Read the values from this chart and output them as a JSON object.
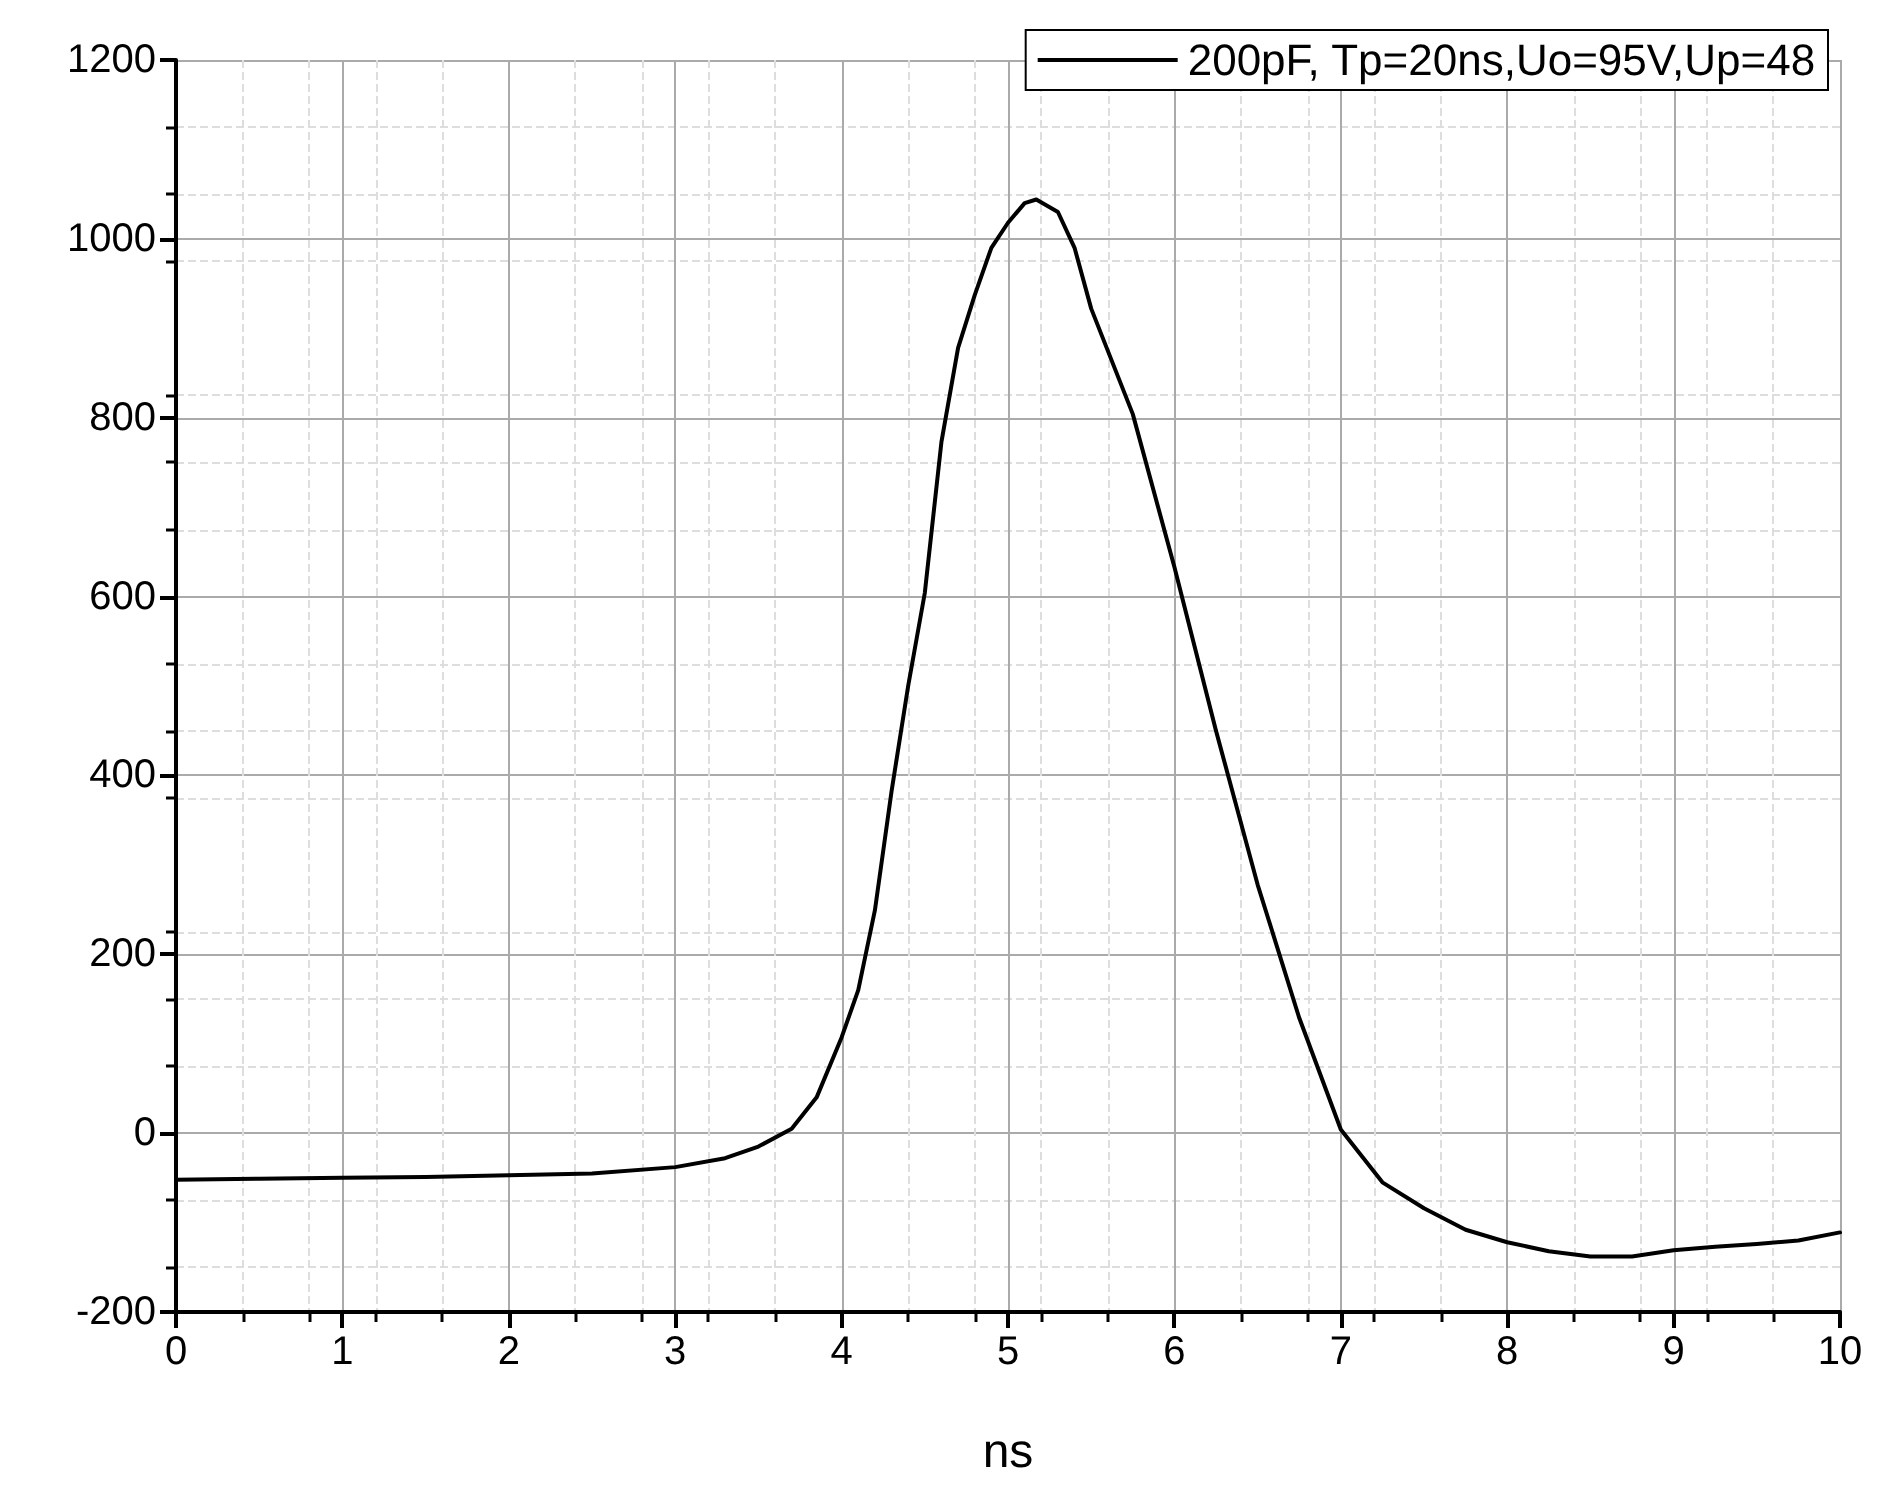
{
  "chart_data": {
    "type": "line",
    "xlabel": "ns",
    "x": [
      0,
      0.5,
      1,
      1.5,
      2,
      2.5,
      3,
      3.3,
      3.5,
      3.7,
      3.85,
      4,
      4.1,
      4.2,
      4.3,
      4.4,
      4.5,
      4.6,
      4.7,
      4.8,
      4.9,
      5,
      5.1,
      5.17,
      5.3,
      5.4,
      5.5,
      5.75,
      6,
      6.25,
      6.5,
      6.75,
      7,
      7.25,
      7.5,
      7.75,
      8,
      8.25,
      8.5,
      8.75,
      9,
      9.25,
      9.5,
      9.75,
      10
    ],
    "series": [
      {
        "name": "200pF, Tp=20ns,Uo=95V,Up=48",
        "color": "#000000",
        "values": [
          -52,
          -51,
          -50,
          -49,
          -47,
          -45,
          -38,
          -28,
          -15,
          5,
          40,
          107,
          160,
          249,
          382,
          500,
          604,
          773,
          878,
          937,
          990,
          1018,
          1040,
          1044,
          1030,
          990,
          922,
          804,
          633,
          450,
          278,
          129,
          4,
          -55,
          -84,
          -108,
          -122,
          -132,
          -138,
          -138,
          -131,
          -127,
          -124,
          -120,
          -111
        ]
      }
    ],
    "xlim": [
      0,
      10
    ],
    "xticks": [
      0,
      1,
      2,
      3,
      4,
      5,
      6,
      7,
      8,
      9,
      10
    ],
    "ylim": [
      -200,
      1200
    ],
    "yticks": [
      -200,
      0,
      200,
      400,
      600,
      800,
      1000,
      1200
    ],
    "grid": true,
    "legend": "top right",
    "marker": "none",
    "line_style": "solid"
  }
}
